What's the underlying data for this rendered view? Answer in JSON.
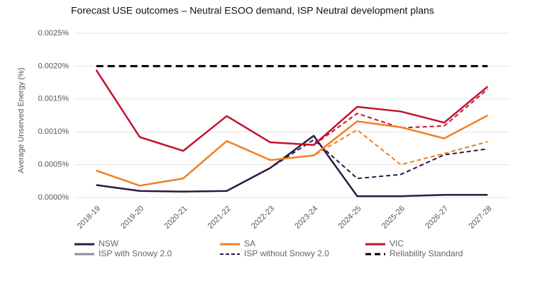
{
  "chart_data": {
    "type": "line",
    "title": "Forecast USE outcomes – Neutral ESOO demand, ISP Neutral development plans",
    "y_label": "Average Unserved Energy (%)",
    "categories": [
      "2018-19",
      "2019-20",
      "2020-21",
      "2021-22",
      "2022-23",
      "2023-24",
      "2024-25",
      "2025-26",
      "2026-27",
      "2027-28"
    ],
    "ylim": [
      0,
      0.0025
    ],
    "yticks": [
      {
        "value": 0,
        "label": "0.0000%"
      },
      {
        "value": 0.0005,
        "label": "0.0005%"
      },
      {
        "value": 0.001,
        "label": "0.0010%"
      },
      {
        "value": 0.0015,
        "label": "0.0015%"
      },
      {
        "value": 0.002,
        "label": "0.0020%"
      },
      {
        "value": 0.0025,
        "label": "0.0025%"
      }
    ],
    "grid": true,
    "series": [
      {
        "name": "NSW",
        "color": "#2e1a40",
        "values": [
          0.00019,
          0.0001,
          9e-05,
          0.0001,
          0.00045,
          0.00094,
          2e-05,
          2e-05,
          4e-05,
          4e-05
        ],
        "values_without_snowy": [
          0.00019,
          0.0001,
          9e-05,
          0.0001,
          0.00045,
          0.00088,
          0.00029,
          0.00035,
          0.00065,
          0.00074
        ]
      },
      {
        "name": "SA",
        "color": "#f07f22",
        "values": [
          0.00041,
          0.00018,
          0.00029,
          0.00086,
          0.00057,
          0.00064,
          0.00116,
          0.00107,
          0.0009,
          0.00125
        ],
        "values_without_snowy": [
          0.00041,
          0.00018,
          0.00029,
          0.00086,
          0.00057,
          0.00064,
          0.00103,
          0.0005,
          0.00067,
          0.00085
        ]
      },
      {
        "name": "VIC",
        "color": "#c0132f",
        "values": [
          0.00194,
          0.00092,
          0.00071,
          0.00124,
          0.00084,
          0.0008,
          0.00138,
          0.00131,
          0.00114,
          0.00169
        ],
        "values_without_snowy": [
          0.00194,
          0.00092,
          0.00071,
          0.00124,
          0.00084,
          0.0008,
          0.00128,
          0.00106,
          0.00109,
          0.00165
        ]
      },
      {
        "name": "Reliability Standard",
        "color": "#000000",
        "standard": true,
        "values": [
          0.002,
          0.002,
          0.002,
          0.002,
          0.002,
          0.002,
          0.002,
          0.002,
          0.002,
          0.002
        ]
      }
    ],
    "line_styles": [
      {
        "name": "ISP with Snowy 2.0",
        "color": "#8a8c9e",
        "dashed": false
      },
      {
        "name": "ISP without Snowy 2.0",
        "color": "#2e1a40",
        "dashed": true
      }
    ]
  }
}
